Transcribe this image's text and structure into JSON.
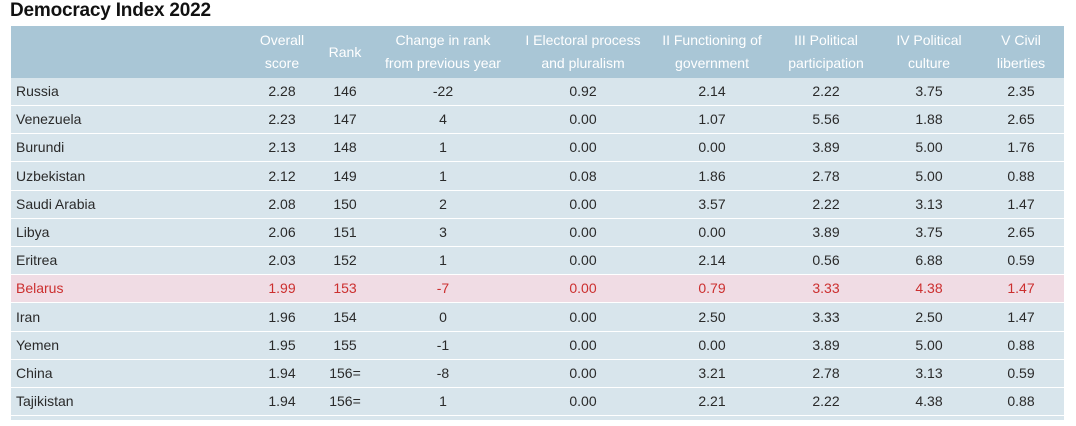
{
  "title": "Democracy Index 2022",
  "columns": [
    "Overall\nscore",
    "Rank",
    "Change in rank\nfrom previous year",
    "I Electoral process\nand pluralism",
    "II Functioning of\ngovernment",
    "III Political\nparticipation",
    "IV Political\nculture",
    "V Civil\nliberties"
  ],
  "highlight_color": "#cc2f2f",
  "rows": [
    {
      "country": "Russia",
      "cells": [
        "2.28",
        "146",
        "-22",
        "0.92",
        "2.14",
        "2.22",
        "3.75",
        "2.35"
      ]
    },
    {
      "country": "Venezuela",
      "cells": [
        "2.23",
        "147",
        "4",
        "0.00",
        "1.07",
        "5.56",
        "1.88",
        "2.65"
      ]
    },
    {
      "country": "Burundi",
      "cells": [
        "2.13",
        "148",
        "1",
        "0.00",
        "0.00",
        "3.89",
        "5.00",
        "1.76"
      ]
    },
    {
      "country": "Uzbekistan",
      "cells": [
        "2.12",
        "149",
        "1",
        "0.08",
        "1.86",
        "2.78",
        "5.00",
        "0.88"
      ]
    },
    {
      "country": "Saudi Arabia",
      "cells": [
        "2.08",
        "150",
        "2",
        "0.00",
        "3.57",
        "2.22",
        "3.13",
        "1.47"
      ]
    },
    {
      "country": "Libya",
      "cells": [
        "2.06",
        "151",
        "3",
        "0.00",
        "0.00",
        "3.89",
        "3.75",
        "2.65"
      ]
    },
    {
      "country": "Eritrea",
      "cells": [
        "2.03",
        "152",
        "1",
        "0.00",
        "2.14",
        "0.56",
        "6.88",
        "0.59"
      ]
    },
    {
      "country": "Belarus",
      "cells": [
        "1.99",
        "153",
        "-7",
        "0.00",
        "0.79",
        "3.33",
        "4.38",
        "1.47"
      ],
      "highlight": true
    },
    {
      "country": "Iran",
      "cells": [
        "1.96",
        "154",
        "0",
        "0.00",
        "2.50",
        "3.33",
        "2.50",
        "1.47"
      ]
    },
    {
      "country": "Yemen",
      "cells": [
        "1.95",
        "155",
        "-1",
        "0.00",
        "0.00",
        "3.89",
        "5.00",
        "0.88"
      ]
    },
    {
      "country": "China",
      "cells": [
        "1.94",
        "156=",
        "-8",
        "0.00",
        "3.21",
        "2.78",
        "3.13",
        "0.59"
      ]
    },
    {
      "country": "Tajikistan",
      "cells": [
        "1.94",
        "156=",
        "1",
        "0.00",
        "2.21",
        "2.22",
        "4.38",
        "0.88"
      ]
    }
  ]
}
